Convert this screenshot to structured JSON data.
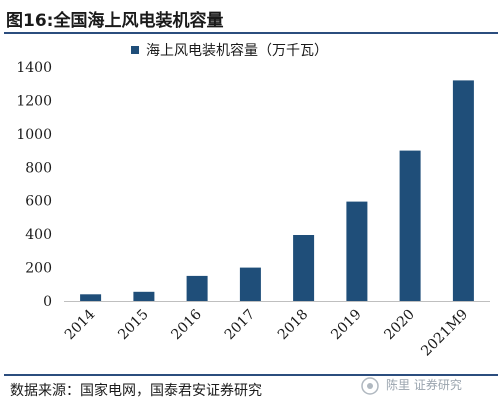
{
  "header": {
    "title": "图16:全国海上风电装机容量"
  },
  "footer": {
    "source": "数据来源：国家电网，国泰君安证券研究",
    "watermark": "陈里 证券研究"
  },
  "colors": {
    "bar": "#1f4e79",
    "rule": "#2b4d7e"
  },
  "chart_data": {
    "type": "bar",
    "categories": [
      "2014",
      "2015",
      "2016",
      "2017",
      "2018",
      "2019",
      "2020",
      "2021M9"
    ],
    "series": [
      {
        "name": "海上风电装机容量（万千瓦）",
        "values": [
          40,
          55,
          150,
          200,
          395,
          595,
          900,
          1320
        ]
      }
    ],
    "ylim": [
      0,
      1400
    ],
    "yticks": [
      0,
      200,
      400,
      600,
      800,
      1000,
      1200,
      1400
    ],
    "xlabel": "",
    "ylabel": "",
    "legend": "top-left",
    "grid": false
  }
}
